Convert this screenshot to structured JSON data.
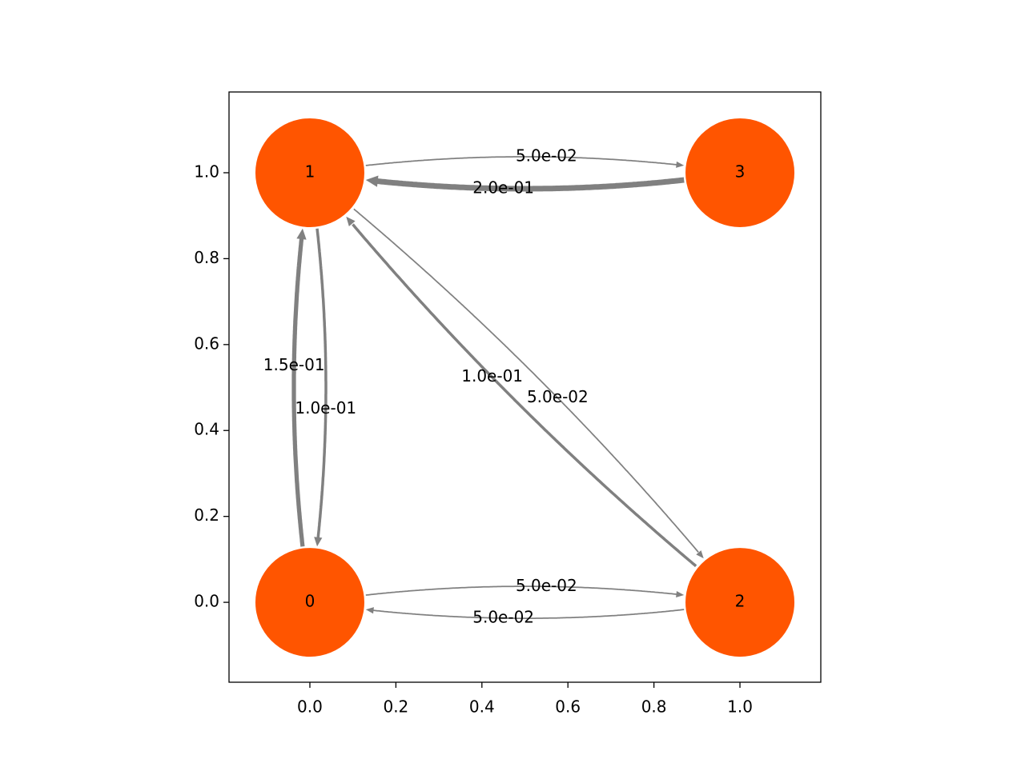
{
  "axes": {
    "xlim": [
      -0.188,
      1.188
    ],
    "ylim": [
      -0.186,
      1.188
    ],
    "xticks": [
      {
        "value": 0,
        "label": "0.0"
      },
      {
        "value": 0.2,
        "label": "0.2"
      },
      {
        "value": 0.4,
        "label": "0.4"
      },
      {
        "value": 0.6,
        "label": "0.6"
      },
      {
        "value": 0.8,
        "label": "0.8"
      },
      {
        "value": 1,
        "label": "1.0"
      }
    ],
    "yticks": [
      {
        "value": 0,
        "label": "0.0"
      },
      {
        "value": 0.2,
        "label": "0.2"
      },
      {
        "value": 0.4,
        "label": "0.4"
      },
      {
        "value": 0.6,
        "label": "0.6"
      },
      {
        "value": 0.8,
        "label": "0.8"
      },
      {
        "value": 1,
        "label": "1.0"
      }
    ]
  },
  "node_color": "#ff5500",
  "edge_color": "#808080",
  "nodes": [
    {
      "label": "0",
      "x": 0,
      "y": 0
    },
    {
      "label": "1",
      "x": 0,
      "y": 1
    },
    {
      "label": "2",
      "x": 1,
      "y": 0
    },
    {
      "label": "3",
      "x": 1,
      "y": 1
    }
  ],
  "edges": [
    {
      "source": 0,
      "target": 1,
      "weight": 0.15,
      "label": "1.5e-01"
    },
    {
      "source": 1,
      "target": 0,
      "weight": 0.1,
      "label": "1.0e-01"
    },
    {
      "source": 1,
      "target": 3,
      "weight": 0.05,
      "label": "5.0e-02"
    },
    {
      "source": 3,
      "target": 1,
      "weight": 0.2,
      "label": "2.0e-01"
    },
    {
      "source": 0,
      "target": 2,
      "weight": 0.05,
      "label": "5.0e-02"
    },
    {
      "source": 2,
      "target": 0,
      "weight": 0.05,
      "label": "5.0e-02"
    },
    {
      "source": 2,
      "target": 1,
      "weight": 0.1,
      "label": "1.0e-01"
    },
    {
      "source": 1,
      "target": 2,
      "weight": 0.05,
      "label": "5.0e-02"
    }
  ]
}
